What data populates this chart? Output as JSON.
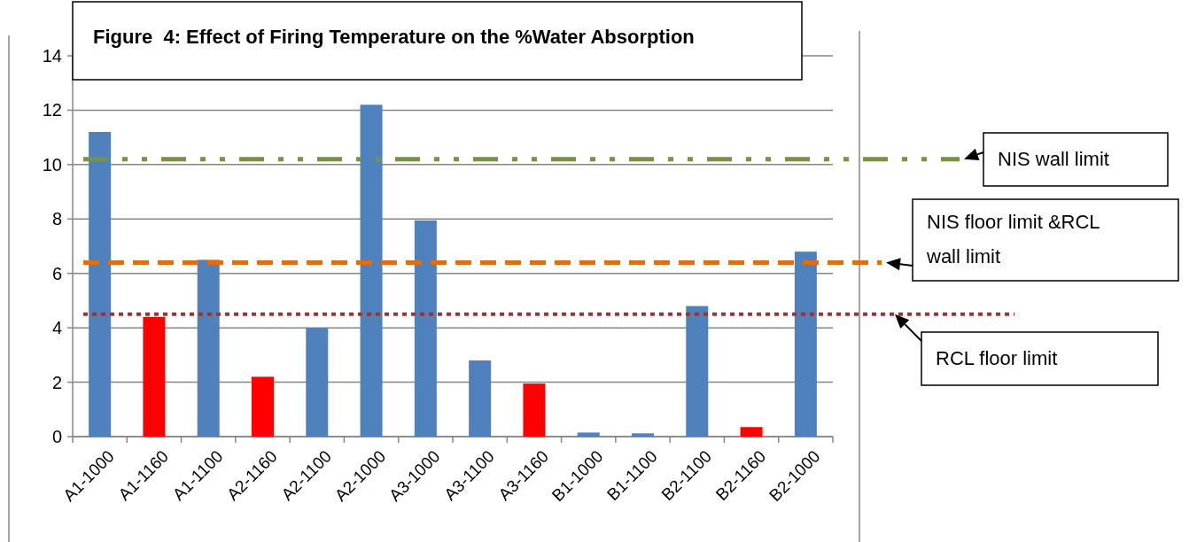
{
  "chart_data": {
    "type": "bar",
    "title": "Figure  4: Effect of Firing Temperature on the %Water Absorption",
    "categories": [
      "A1-1000",
      "A1-1160",
      "A1-1100",
      "A2-1160",
      "A2-1100",
      "A2-1000",
      "A3-1000",
      "A3-1100",
      "A3-1160",
      "B1-1000",
      "B1-1100",
      "B2-1100",
      "B2-1160",
      "B2-1000"
    ],
    "values": [
      11.2,
      4.4,
      6.5,
      2.2,
      4.0,
      12.2,
      7.95,
      2.8,
      1.95,
      0.15,
      0.12,
      4.8,
      0.35,
      6.8
    ],
    "colors": [
      "#4f81bd",
      "#ff0000",
      "#4f81bd",
      "#ff0000",
      "#4f81bd",
      "#4f81bd",
      "#4f81bd",
      "#4f81bd",
      "#ff0000",
      "#4f81bd",
      "#4f81bd",
      "#4f81bd",
      "#ff0000",
      "#4f81bd"
    ],
    "ylim": [
      0,
      14
    ],
    "yticks": [
      0,
      2,
      4,
      6,
      8,
      10,
      12,
      14
    ],
    "grid": "y",
    "ref_lines": [
      {
        "axis": "y",
        "value": 10.2,
        "label": "NIS wall limit",
        "color": "#77933c",
        "line_style": "dashdot"
      },
      {
        "axis": "y",
        "value": 6.4,
        "label": "NIS floor limit &RCL wall limit",
        "color": "#e46c0a",
        "line_style": "dashed"
      },
      {
        "axis": "y",
        "value": 4.5,
        "label": "RCL floor limit",
        "color": "#953735",
        "line_style": "dotted"
      }
    ]
  }
}
